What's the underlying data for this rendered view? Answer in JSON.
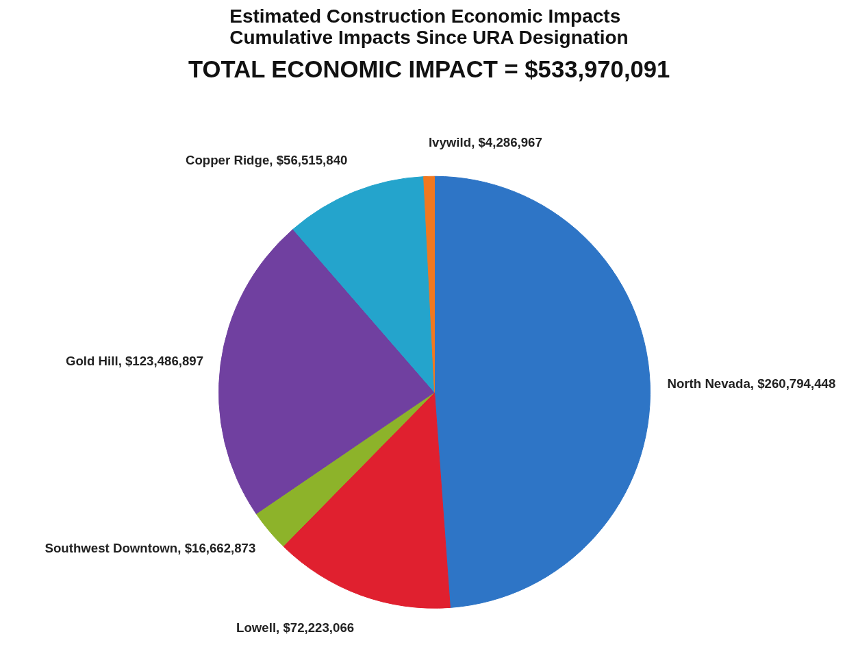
{
  "chart_data": {
    "type": "pie",
    "title": "Estimated Construction Economic Impacts\nCumulative Impacts Since URA Designation",
    "subtitle": "TOTAL ECONOMIC IMPACT = $533,970,091",
    "categories": [
      "North Nevada",
      "Lowell",
      "Southwest Downtown",
      "Gold Hill",
      "Copper Ridge",
      "Ivywild"
    ],
    "values": [
      260794448,
      72223066,
      16662873,
      123486897,
      56515840,
      4286967
    ],
    "value_labels": [
      "$260,794,448",
      "$72,223,066",
      "$16,662,873",
      "$123,486,897",
      "$56,515,840",
      "$4,286,967"
    ],
    "colors": [
      "#2e75c6",
      "#e0202f",
      "#8db32a",
      "#7040a0",
      "#24a4cc",
      "#f07820"
    ]
  }
}
